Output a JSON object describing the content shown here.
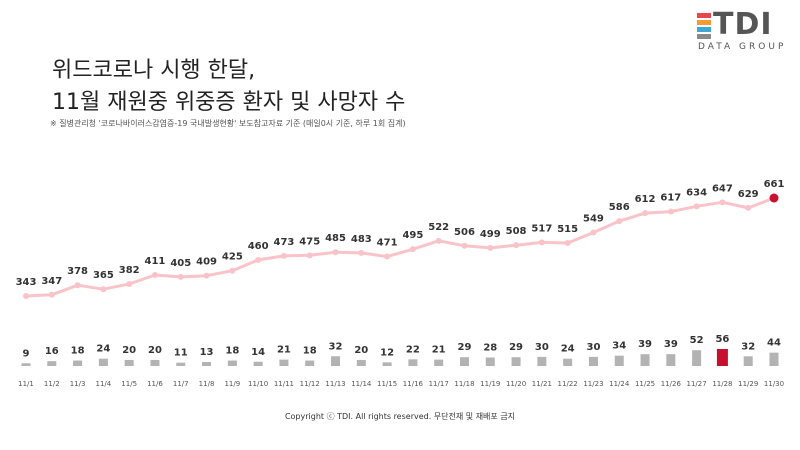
{
  "header": {
    "title_line1": "위드코로나 시행 한달,",
    "title_line2": "11월 재원중 위중증 환자 및 사망자 수",
    "source": "※ 질병관리청 '코로나바이러스감염증-19 국내발생현황' 보도참고자료 기준 (매일0시 기준, 하루 1회 집계)"
  },
  "logo": {
    "text": "TDI",
    "subtext": "DATA GROUP",
    "colors": [
      "#e8474c",
      "#f39c32",
      "#3fa7d6",
      "#8a8a8a"
    ]
  },
  "footer": {
    "copyright": "Copyright ⓒ TDI. All rights reserved. 무단전재 및 재배포 금지"
  },
  "chart_data": {
    "type": "line+bar",
    "categories": [
      "11/1",
      "11/2",
      "11/3",
      "11/4",
      "11/5",
      "11/6",
      "11/7",
      "11/8",
      "11/9",
      "11/10",
      "11/11",
      "11/12",
      "11/13",
      "11/14",
      "11/15",
      "11/16",
      "11/17",
      "11/18",
      "11/19",
      "11/20",
      "11/21",
      "11/22",
      "11/23",
      "11/24",
      "11/25",
      "11/26",
      "11/27",
      "11/28",
      "11/29",
      "11/30"
    ],
    "series": [
      {
        "type": "line",
        "values": [
          343,
          347,
          378,
          365,
          382,
          411,
          405,
          409,
          425,
          460,
          473,
          475,
          485,
          483,
          471,
          495,
          522,
          506,
          499,
          508,
          517,
          515,
          549,
          586,
          612,
          617,
          634,
          647,
          629,
          661
        ],
        "color": "#f9c3c9",
        "highlight_index": 29,
        "highlight_color": "#c8102e"
      },
      {
        "type": "bar",
        "values": [
          9,
          16,
          18,
          24,
          20,
          20,
          11,
          13,
          18,
          14,
          21,
          18,
          32,
          20,
          12,
          22,
          21,
          29,
          28,
          29,
          30,
          24,
          30,
          34,
          39,
          39,
          52,
          56,
          32,
          44
        ],
        "color": "#b3b3b3",
        "highlight_index": 27,
        "highlight_color": "#c8102e"
      }
    ]
  }
}
